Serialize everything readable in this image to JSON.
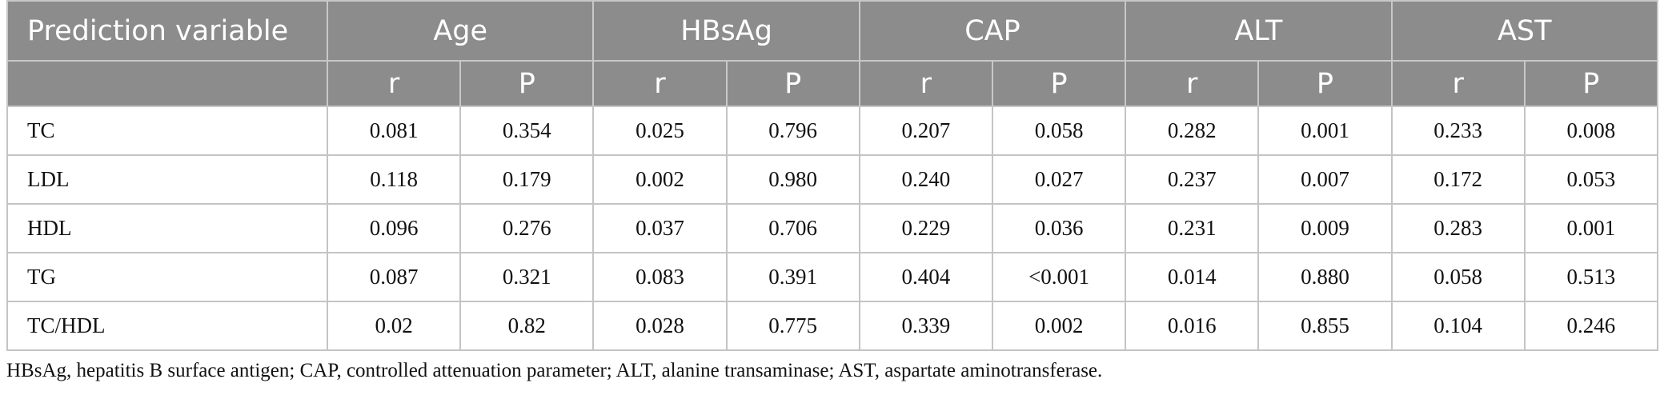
{
  "table": {
    "header_label": "Prediction variable",
    "groups": [
      "Age",
      "HBsAg",
      "CAP",
      "ALT",
      "AST"
    ],
    "sub": {
      "r": "r",
      "p": "P"
    },
    "rows": [
      {
        "label": "TC",
        "values": [
          "0.081",
          "0.354",
          "0.025",
          "0.796",
          "0.207",
          "0.058",
          "0.282",
          "0.001",
          "0.233",
          "0.008"
        ]
      },
      {
        "label": "LDL",
        "values": [
          "0.118",
          "0.179",
          "0.002",
          "0.980",
          "0.240",
          "0.027",
          "0.237",
          "0.007",
          "0.172",
          "0.053"
        ]
      },
      {
        "label": "HDL",
        "values": [
          "0.096",
          "0.276",
          "0.037",
          "0.706",
          "0.229",
          "0.036",
          "0.231",
          "0.009",
          "0.283",
          "0.001"
        ]
      },
      {
        "label": "TG",
        "values": [
          "0.087",
          "0.321",
          "0.083",
          "0.391",
          "0.404",
          "<0.001",
          "0.014",
          "0.880",
          "0.058",
          "0.513"
        ]
      },
      {
        "label": "TC/HDL",
        "values": [
          "0.02",
          "0.82",
          "0.028",
          "0.775",
          "0.339",
          "0.002",
          "0.016",
          "0.855",
          "0.104",
          "0.246"
        ]
      }
    ]
  },
  "footnote": "HBsAg, hepatitis B surface antigen; CAP, controlled attenuation parameter; ALT, alanine transaminase; AST, aspartate aminotransferase."
}
